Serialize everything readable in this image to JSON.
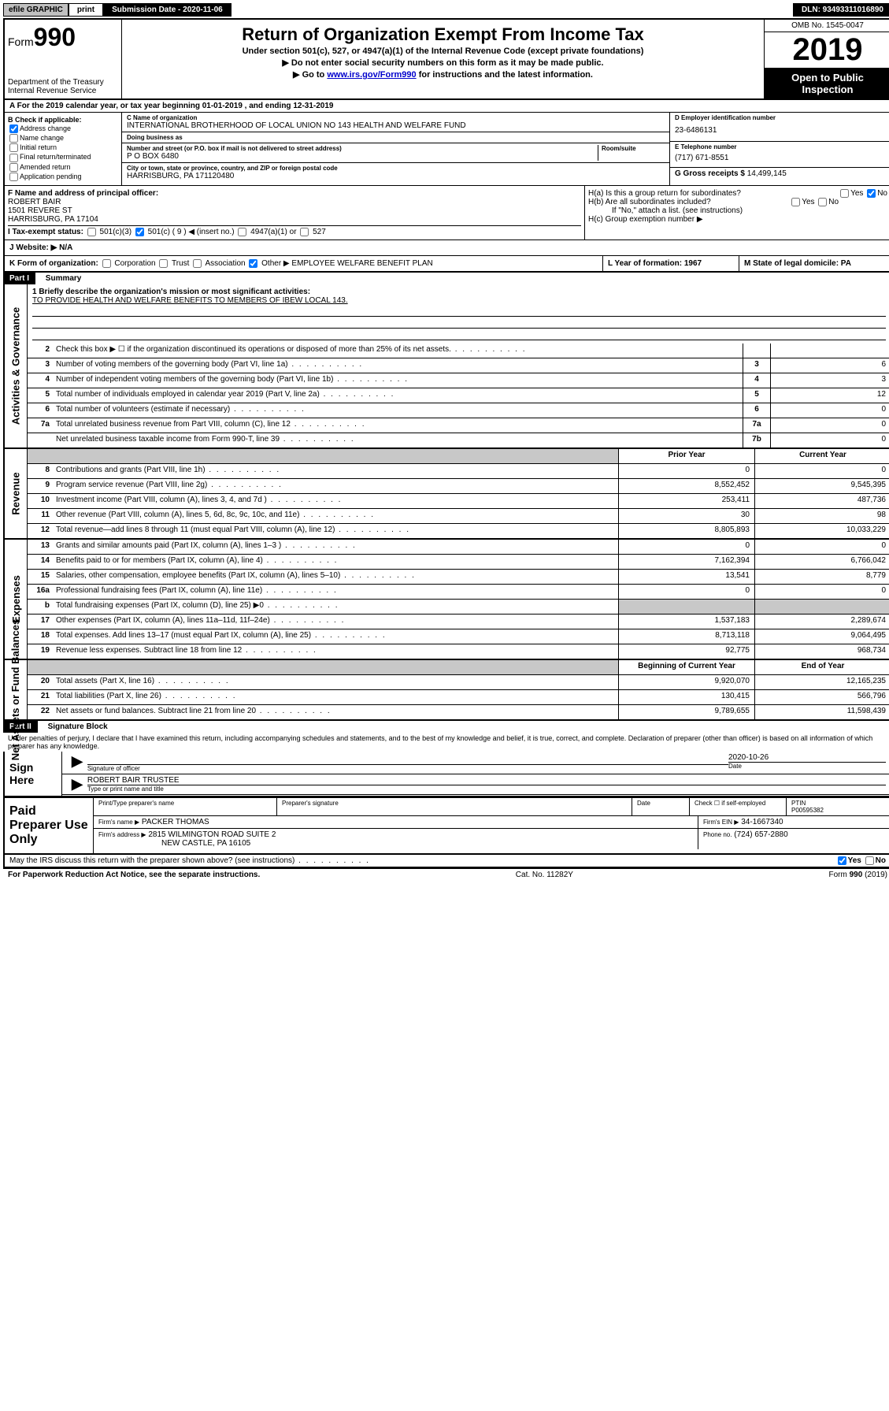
{
  "topbar": {
    "efile": "efile GRAPHIC",
    "print": "print",
    "submission": "Submission Date - 2020-11-06",
    "dln": "DLN: 93493311016890"
  },
  "header": {
    "form_label": "Form",
    "form_num": "990",
    "dept": "Department of the Treasury\nInternal Revenue Service",
    "title": "Return of Organization Exempt From Income Tax",
    "sub1": "Under section 501(c), 527, or 4947(a)(1) of the Internal Revenue Code (except private foundations)",
    "sub2": "▶ Do not enter social security numbers on this form as it may be made public.",
    "sub3_pre": "▶ Go to ",
    "sub3_link": "www.irs.gov/Form990",
    "sub3_post": " for instructions and the latest information.",
    "omb": "OMB No. 1545-0047",
    "year": "2019",
    "inspect": "Open to Public Inspection"
  },
  "row_a": "A For the 2019 calendar year, or tax year beginning 01-01-2019    , and ending 12-31-2019",
  "col_b": {
    "title": "B Check if applicable:",
    "addr": "Address change",
    "name": "Name change",
    "init": "Initial return",
    "final": "Final return/terminated",
    "amend": "Amended return",
    "app": "Application pending"
  },
  "col_c": {
    "name_lbl": "C Name of organization",
    "name": "INTERNATIONAL BROTHERHOOD OF LOCAL UNION NO 143 HEALTH AND WELFARE FUND",
    "dba_lbl": "Doing business as",
    "dba": "",
    "addr_lbl": "Number and street (or P.O. box if mail is not delivered to street address)",
    "addr": "P O BOX 6480",
    "room_lbl": "Room/suite",
    "city_lbl": "City or town, state or province, country, and ZIP or foreign postal code",
    "city": "HARRISBURG, PA  171120480"
  },
  "col_d": {
    "ein_lbl": "D Employer identification number",
    "ein": "23-6486131",
    "tel_lbl": "E Telephone number",
    "tel": "(717) 671-8551",
    "gross_lbl": "G Gross receipts $",
    "gross": "14,499,145"
  },
  "col_f": {
    "lbl": "F Name and address of principal officer:",
    "name": "ROBERT BAIR",
    "addr1": "1501 REVERE ST",
    "addr2": "HARRISBURG, PA  17104"
  },
  "col_h": {
    "ha": "H(a)  Is this a group return for subordinates?",
    "hb": "H(b)  Are all subordinates included?",
    "hb_note": "If \"No,\" attach a list. (see instructions)",
    "hc": "H(c)  Group exemption number ▶"
  },
  "tax_status": {
    "i": "I  Tax-exempt status:",
    "c3": "501(c)(3)",
    "c": "501(c) ( 9 ) ◀ (insert no.)",
    "a1": "4947(a)(1) or",
    "527": "527"
  },
  "row_j": {
    "lbl": "J  Website: ▶",
    "val": "N/A"
  },
  "row_k": {
    "k": "K Form of organization:",
    "corp": "Corporation",
    "trust": "Trust",
    "assoc": "Association",
    "other_lbl": "Other ▶",
    "other": "EMPLOYEE WELFARE BENEFIT PLAN",
    "l": "L Year of formation: 1967",
    "m": "M State of legal domicile: PA"
  },
  "part1": {
    "bar": "Part I",
    "title": "Summary"
  },
  "mission": {
    "q": "1  Briefly describe the organization's mission or most significant activities:",
    "a": "TO PROVIDE HEALTH AND WELFARE BENEFITS TO MEMBERS OF IBEW LOCAL 143."
  },
  "gov_lines": [
    {
      "n": "2",
      "d": "Check this box ▶ ☐  if the organization discontinued its operations or disposed of more than 25% of its net assets.",
      "ref": "",
      "v": ""
    },
    {
      "n": "3",
      "d": "Number of voting members of the governing body (Part VI, line 1a)",
      "ref": "3",
      "v": "6"
    },
    {
      "n": "4",
      "d": "Number of independent voting members of the governing body (Part VI, line 1b)",
      "ref": "4",
      "v": "3"
    },
    {
      "n": "5",
      "d": "Total number of individuals employed in calendar year 2019 (Part V, line 2a)",
      "ref": "5",
      "v": "12"
    },
    {
      "n": "6",
      "d": "Total number of volunteers (estimate if necessary)",
      "ref": "6",
      "v": "0"
    },
    {
      "n": "7a",
      "d": "Total unrelated business revenue from Part VIII, column (C), line 12",
      "ref": "7a",
      "v": "0"
    },
    {
      "n": "",
      "d": "Net unrelated business taxable income from Form 990-T, line 39",
      "ref": "7b",
      "v": "0"
    }
  ],
  "col_headers": {
    "prior": "Prior Year",
    "curr": "Current Year",
    "beg": "Beginning of Current Year",
    "end": "End of Year"
  },
  "revenue": [
    {
      "n": "8",
      "d": "Contributions and grants (Part VIII, line 1h)",
      "p": "0",
      "c": "0"
    },
    {
      "n": "9",
      "d": "Program service revenue (Part VIII, line 2g)",
      "p": "8,552,452",
      "c": "9,545,395"
    },
    {
      "n": "10",
      "d": "Investment income (Part VIII, column (A), lines 3, 4, and 7d )",
      "p": "253,411",
      "c": "487,736"
    },
    {
      "n": "11",
      "d": "Other revenue (Part VIII, column (A), lines 5, 6d, 8c, 9c, 10c, and 11e)",
      "p": "30",
      "c": "98"
    },
    {
      "n": "12",
      "d": "Total revenue—add lines 8 through 11 (must equal Part VIII, column (A), line 12)",
      "p": "8,805,893",
      "c": "10,033,229"
    }
  ],
  "expenses": [
    {
      "n": "13",
      "d": "Grants and similar amounts paid (Part IX, column (A), lines 1–3 )",
      "p": "0",
      "c": "0"
    },
    {
      "n": "14",
      "d": "Benefits paid to or for members (Part IX, column (A), line 4)",
      "p": "7,162,394",
      "c": "6,766,042"
    },
    {
      "n": "15",
      "d": "Salaries, other compensation, employee benefits (Part IX, column (A), lines 5–10)",
      "p": "13,541",
      "c": "8,779"
    },
    {
      "n": "16a",
      "d": "Professional fundraising fees (Part IX, column (A), line 11e)",
      "p": "0",
      "c": "0"
    },
    {
      "n": "b",
      "d": "Total fundraising expenses (Part IX, column (D), line 25) ▶0",
      "p": "",
      "c": "",
      "shade": true
    },
    {
      "n": "17",
      "d": "Other expenses (Part IX, column (A), lines 11a–11d, 11f–24e)",
      "p": "1,537,183",
      "c": "2,289,674"
    },
    {
      "n": "18",
      "d": "Total expenses. Add lines 13–17 (must equal Part IX, column (A), line 25)",
      "p": "8,713,118",
      "c": "9,064,495"
    },
    {
      "n": "19",
      "d": "Revenue less expenses. Subtract line 18 from line 12",
      "p": "92,775",
      "c": "968,734"
    }
  ],
  "netassets": [
    {
      "n": "20",
      "d": "Total assets (Part X, line 16)",
      "p": "9,920,070",
      "c": "12,165,235"
    },
    {
      "n": "21",
      "d": "Total liabilities (Part X, line 26)",
      "p": "130,415",
      "c": "566,796"
    },
    {
      "n": "22",
      "d": "Net assets or fund balances. Subtract line 21 from line 20",
      "p": "9,789,655",
      "c": "11,598,439"
    }
  ],
  "part2": {
    "bar": "Part II",
    "title": "Signature Block"
  },
  "perjury": "Under penalties of perjury, I declare that I have examined this return, including accompanying schedules and statements, and to the best of my knowledge and belief, it is true, correct, and complete. Declaration of preparer (other than officer) is based on all information of which preparer has any knowledge.",
  "sign": {
    "here": "Sign Here",
    "sig_lbl": "Signature of officer",
    "date": "2020-10-26",
    "date_lbl": "Date",
    "name": "ROBERT BAIR  TRUSTEE",
    "name_lbl": "Type or print name and title"
  },
  "paid": {
    "title": "Paid Preparer Use Only",
    "h1": "Print/Type preparer's name",
    "h2": "Preparer's signature",
    "h3": "Date",
    "h4_pre": "Check ☐ if self-employed",
    "h5": "PTIN",
    "ptin": "P00595382",
    "firm_lbl": "Firm's name    ▶",
    "firm": "PACKER THOMAS",
    "ein_lbl": "Firm's EIN ▶",
    "ein": "34-1667340",
    "addr_lbl": "Firm's address ▶",
    "addr1": "2815 WILMINGTON ROAD SUITE 2",
    "addr2": "NEW CASTLE, PA  16105",
    "phone_lbl": "Phone no.",
    "phone": "(724) 657-2880"
  },
  "discuss": "May the IRS discuss this return with the preparer shown above? (see instructions)",
  "footer": {
    "l": "For Paperwork Reduction Act Notice, see the separate instructions.",
    "m": "Cat. No. 11282Y",
    "r": "Form 990 (2019)"
  },
  "yes": "Yes",
  "no": "No"
}
